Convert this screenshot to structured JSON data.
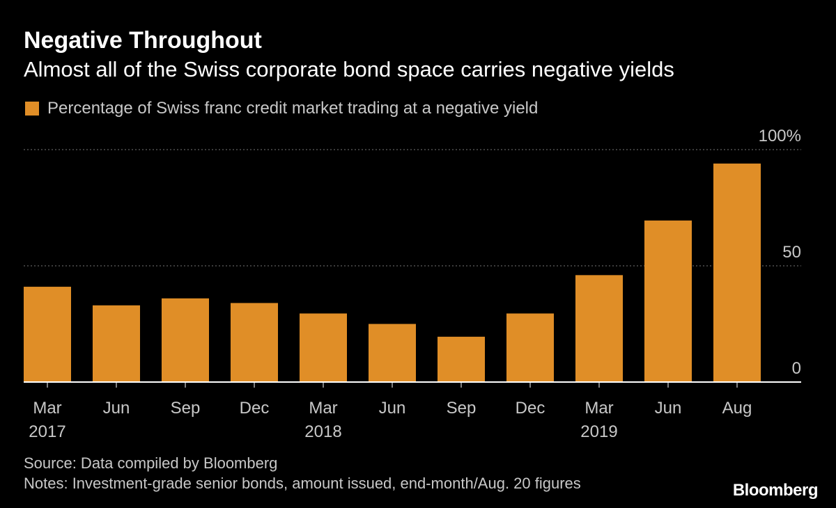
{
  "header": {
    "title": "Negative Throughout",
    "subtitle": "Almost all of the Swiss corporate bond space carries negative yields"
  },
  "footer": {
    "source": "Source: Data compiled by Bloomberg",
    "notes": "Notes: Investment-grade senior bonds, amount issued, end-month/Aug. 20 figures",
    "logo": "Bloomberg"
  },
  "colors": {
    "background": "#000000",
    "bar": "#e08e27",
    "axis": "#ffffff",
    "grid": "#777777",
    "muted_text": "#c8c8c8"
  },
  "chart_data": {
    "type": "bar",
    "title": "Negative Throughout",
    "subtitle": "Almost all of the Swiss corporate bond space carries negative yields",
    "categories": [
      "Mar 2017",
      "Jun 2017",
      "Sep 2017",
      "Dec 2017",
      "Mar 2018",
      "Jun 2018",
      "Sep 2018",
      "Dec 2018",
      "Mar 2019",
      "Jun 2019",
      "Aug 2019"
    ],
    "tick_labels": [
      {
        "line1": "Mar",
        "line2": "2017"
      },
      {
        "line1": "Jun",
        "line2": ""
      },
      {
        "line1": "Sep",
        "line2": ""
      },
      {
        "line1": "Dec",
        "line2": ""
      },
      {
        "line1": "Mar",
        "line2": "2018"
      },
      {
        "line1": "Jun",
        "line2": ""
      },
      {
        "line1": "Sep",
        "line2": ""
      },
      {
        "line1": "Dec",
        "line2": ""
      },
      {
        "line1": "Mar",
        "line2": "2019"
      },
      {
        "line1": "Jun",
        "line2": ""
      },
      {
        "line1": "Aug",
        "line2": ""
      }
    ],
    "series": [
      {
        "name": "Percentage of Swiss franc credit market trading at a negative yield",
        "values": [
          41,
          33,
          36,
          34,
          29.5,
          25,
          19.5,
          29.5,
          46,
          69.5,
          94
        ]
      }
    ],
    "ylim": [
      0,
      100
    ],
    "yticks": [
      0,
      50,
      100
    ],
    "ytick_labels": [
      "0",
      "50",
      "100%"
    ],
    "grid": true,
    "legend_position": "top-left"
  }
}
